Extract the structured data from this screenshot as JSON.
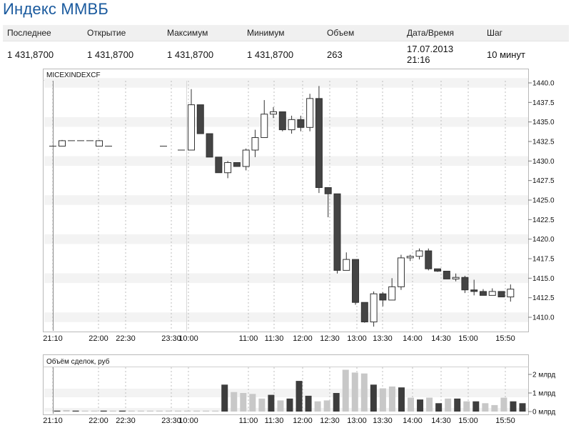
{
  "page_title": "Индекс ММВБ",
  "quote": {
    "headers": [
      "Последнее",
      "Открытие",
      "Максимум",
      "Минимум",
      "Объем",
      "Дата/Время",
      "Шаг"
    ],
    "values": [
      "1 431,8700",
      "1 431,8700",
      "1 431,8700",
      "1 431,8700",
      "263",
      "17.07.2013 21:16",
      "10 минут"
    ]
  },
  "chart_data": [
    {
      "type": "candlestick",
      "title": "MICEXINDEXCF",
      "ylim": [
        1408,
        1440.5
      ],
      "y_ticks": [
        1410.0,
        1412.5,
        1415.0,
        1417.5,
        1420.0,
        1422.5,
        1425.0,
        1427.5,
        1430.0,
        1432.5,
        1435.0,
        1437.5,
        1440.0
      ],
      "y_tick_labels": [
        "1410.0",
        "1412.5",
        "1415.0",
        "1417.5",
        "1420.0",
        "1422.5",
        "1425.0",
        "1427.5",
        "1430.0",
        "1432.5",
        "1435.0",
        "1437.5",
        "1440.0"
      ],
      "x_ticks": [
        "21:10",
        "22:00",
        "22:30",
        "23:30",
        "10:00",
        "11:00",
        "11:30",
        "12:00",
        "12:30",
        "13:00",
        "13:30",
        "14:00",
        "14:30",
        "15:00",
        "15:50"
      ],
      "candles": [
        {
          "o": 1431.9,
          "h": 1431.9,
          "l": 1431.9,
          "c": 1431.9
        },
        {
          "o": 1431.9,
          "h": 1432.7,
          "l": 1431.9,
          "c": 1432.6
        },
        {
          "o": 1432.6,
          "h": 1432.6,
          "l": 1432.6,
          "c": 1432.6
        },
        {
          "o": 1432.6,
          "h": 1432.6,
          "l": 1432.6,
          "c": 1432.6
        },
        {
          "o": 1432.6,
          "h": 1432.6,
          "l": 1432.6,
          "c": 1432.6
        },
        {
          "o": 1431.9,
          "h": 1432.7,
          "l": 1431.9,
          "c": 1432.6
        },
        {
          "o": 1431.9,
          "h": 1431.9,
          "l": 1431.9,
          "c": 1431.9
        },
        {
          "o": 1431.9,
          "h": 1431.9,
          "l": 1431.9,
          "c": 1431.9
        },
        {
          "o": 1431.4,
          "h": 1431.4,
          "l": 1431.4,
          "c": 1431.4
        },
        {
          "o": 1431.4,
          "h": 1439.2,
          "l": 1431.4,
          "c": 1437.2
        },
        {
          "o": 1437.2,
          "h": 1437.2,
          "l": 1433.5,
          "c": 1433.5
        },
        {
          "o": 1433.5,
          "h": 1433.5,
          "l": 1430.5,
          "c": 1430.5
        },
        {
          "o": 1430.5,
          "h": 1430.5,
          "l": 1428.5,
          "c": 1428.5
        },
        {
          "o": 1428.5,
          "h": 1430.0,
          "l": 1427.8,
          "c": 1429.8
        },
        {
          "o": 1429.8,
          "h": 1429.8,
          "l": 1429.3,
          "c": 1429.3
        },
        {
          "o": 1429.3,
          "h": 1431.6,
          "l": 1428.8,
          "c": 1431.4
        },
        {
          "o": 1431.4,
          "h": 1434.0,
          "l": 1430.5,
          "c": 1433.0
        },
        {
          "o": 1433.0,
          "h": 1437.8,
          "l": 1433.0,
          "c": 1436.0
        },
        {
          "o": 1436.0,
          "h": 1436.9,
          "l": 1435.5,
          "c": 1436.3
        },
        {
          "o": 1436.3,
          "h": 1436.3,
          "l": 1433.8,
          "c": 1434.0
        },
        {
          "o": 1434.0,
          "h": 1435.8,
          "l": 1433.5,
          "c": 1435.3
        },
        {
          "o": 1435.3,
          "h": 1435.8,
          "l": 1433.8,
          "c": 1434.3
        },
        {
          "o": 1434.3,
          "h": 1438.6,
          "l": 1433.8,
          "c": 1438.0
        },
        {
          "o": 1438.0,
          "h": 1439.6,
          "l": 1425.9,
          "c": 1426.6
        },
        {
          "o": 1426.6,
          "h": 1426.6,
          "l": 1422.8,
          "c": 1425.8
        },
        {
          "o": 1425.8,
          "h": 1425.8,
          "l": 1415.6,
          "c": 1416.0
        },
        {
          "o": 1416.0,
          "h": 1418.3,
          "l": 1416.0,
          "c": 1417.4
        },
        {
          "o": 1417.4,
          "h": 1417.4,
          "l": 1411.6,
          "c": 1411.9
        },
        {
          "o": 1411.9,
          "h": 1411.9,
          "l": 1409.3,
          "c": 1409.4
        },
        {
          "o": 1409.4,
          "h": 1413.3,
          "l": 1408.8,
          "c": 1413.0
        },
        {
          "o": 1413.0,
          "h": 1413.2,
          "l": 1411.4,
          "c": 1412.2
        },
        {
          "o": 1412.2,
          "h": 1415.0,
          "l": 1412.2,
          "c": 1413.9
        },
        {
          "o": 1413.9,
          "h": 1418.0,
          "l": 1413.5,
          "c": 1417.6
        },
        {
          "o": 1417.6,
          "h": 1418.0,
          "l": 1417.2,
          "c": 1417.8
        },
        {
          "o": 1417.8,
          "h": 1418.8,
          "l": 1417.4,
          "c": 1418.5
        },
        {
          "o": 1418.5,
          "h": 1418.8,
          "l": 1416.0,
          "c": 1416.2
        },
        {
          "o": 1416.2,
          "h": 1416.2,
          "l": 1415.8,
          "c": 1415.9
        },
        {
          "o": 1415.9,
          "h": 1415.9,
          "l": 1414.9,
          "c": 1414.9
        },
        {
          "o": 1414.9,
          "h": 1415.6,
          "l": 1414.6,
          "c": 1415.1
        },
        {
          "o": 1415.1,
          "h": 1415.3,
          "l": 1413.1,
          "c": 1413.5
        },
        {
          "o": 1413.5,
          "h": 1414.8,
          "l": 1412.8,
          "c": 1413.3
        },
        {
          "o": 1413.3,
          "h": 1413.6,
          "l": 1412.8,
          "c": 1412.8
        },
        {
          "o": 1412.8,
          "h": 1413.7,
          "l": 1412.9,
          "c": 1413.3
        },
        {
          "o": 1413.3,
          "h": 1413.3,
          "l": 1412.6,
          "c": 1412.6
        },
        {
          "o": 1412.6,
          "h": 1414.2,
          "l": 1412.0,
          "c": 1413.6
        }
      ]
    },
    {
      "type": "bar",
      "title": "Объём сделок, руб",
      "ylim": [
        0,
        2.2
      ],
      "y_ticks": [
        0,
        1,
        2
      ],
      "y_tick_labels": [
        "0 млрд",
        "1 млрд",
        "2 млрд"
      ],
      "x_ticks": [
        "21:10",
        "22:00",
        "22:30",
        "23:30",
        "10:00",
        "11:00",
        "11:30",
        "12:00",
        "12:30",
        "13:00",
        "13:30",
        "14:00",
        "14:30",
        "15:00",
        "15:50"
      ],
      "values": [
        0.05,
        0.08,
        0.05,
        0.05,
        0.05,
        0.05,
        0.05,
        0.05,
        0.05,
        0.05,
        0.05,
        0.05,
        0.05,
        0.05,
        0.05,
        0.05,
        0.05,
        0.05,
        1.45,
        1.05,
        1.0,
        0.95,
        0.7,
        0.9,
        0.6,
        0.7,
        1.65,
        0.85,
        0.55,
        0.6,
        1.0,
        2.25,
        2.1,
        2.05,
        1.45,
        1.25,
        1.35,
        1.3,
        0.75,
        0.65,
        0.75,
        0.45,
        0.7,
        0.7,
        0.55,
        0.55,
        0.45,
        0.35,
        0.75,
        0.55,
        0.45
      ],
      "colors": [
        "dark",
        "light",
        "dark",
        "light",
        "light",
        "dark",
        "light",
        "dark",
        "light",
        "light",
        "light",
        "light",
        "light",
        "light",
        "light",
        "light",
        "light",
        "light",
        "dark",
        "light",
        "light",
        "light",
        "light",
        "dark",
        "light",
        "dark",
        "dark",
        "dark",
        "light",
        "light",
        "dark",
        "light",
        "light",
        "light",
        "dark",
        "light",
        "light",
        "dark",
        "light",
        "dark",
        "light",
        "dark",
        "light",
        "dark",
        "light",
        "dark",
        "light",
        "light",
        "light",
        "dark",
        "dark"
      ]
    }
  ]
}
